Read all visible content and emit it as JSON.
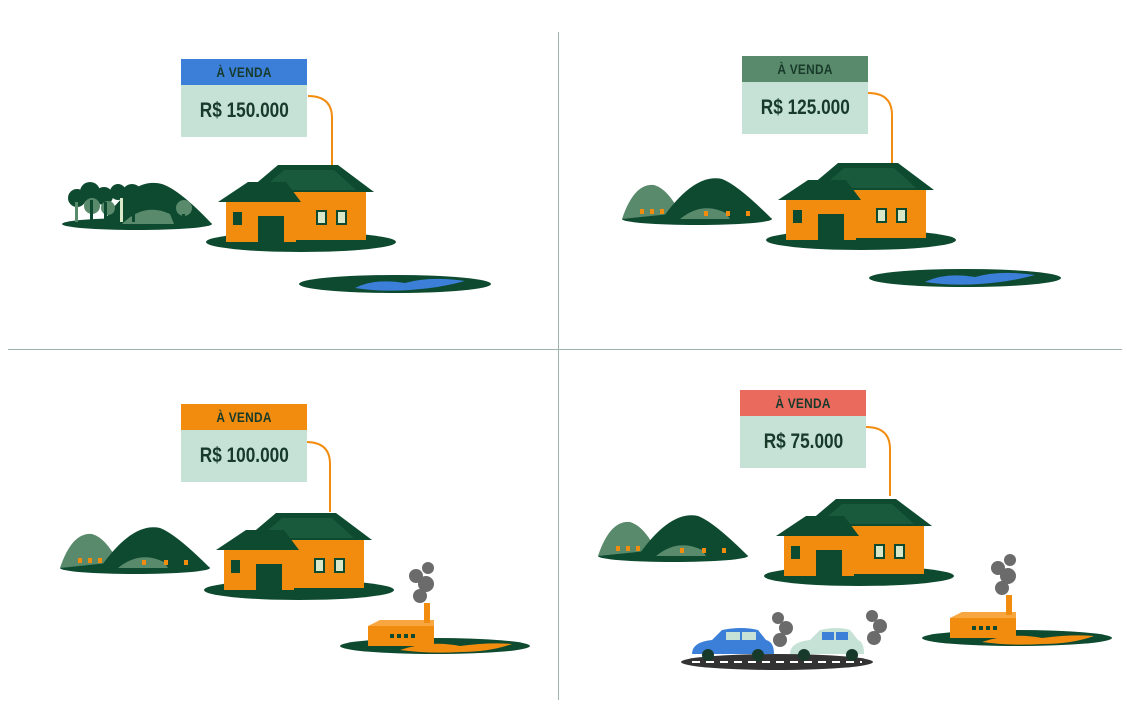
{
  "panels": [
    {
      "id": "p1",
      "label": "À VENDA",
      "price": "R$ 150.000",
      "label_color": "#3b7fd9",
      "scene": "forest-lake"
    },
    {
      "id": "p2",
      "label": "À VENDA",
      "price": "R$ 125.000",
      "label_color": "#5a8a6c",
      "scene": "hills-lake"
    },
    {
      "id": "p3",
      "label": "À VENDA",
      "price": "R$ 100.000",
      "label_color": "#f28c0f",
      "scene": "hills-factory"
    },
    {
      "id": "p4",
      "label": "À VENDA",
      "price": "R$ 75.000",
      "label_color": "#ea6a5e",
      "scene": "hills-factory-cars"
    }
  ],
  "colors": {
    "dark_green": "#0e4a30",
    "mid_green": "#5a8a6c",
    "house_orange": "#f28c0f",
    "roof": "#0e4a30",
    "water": "#3b7fd9",
    "sign_body": "#c6e2d6",
    "smoke": "#6b6b6b"
  }
}
